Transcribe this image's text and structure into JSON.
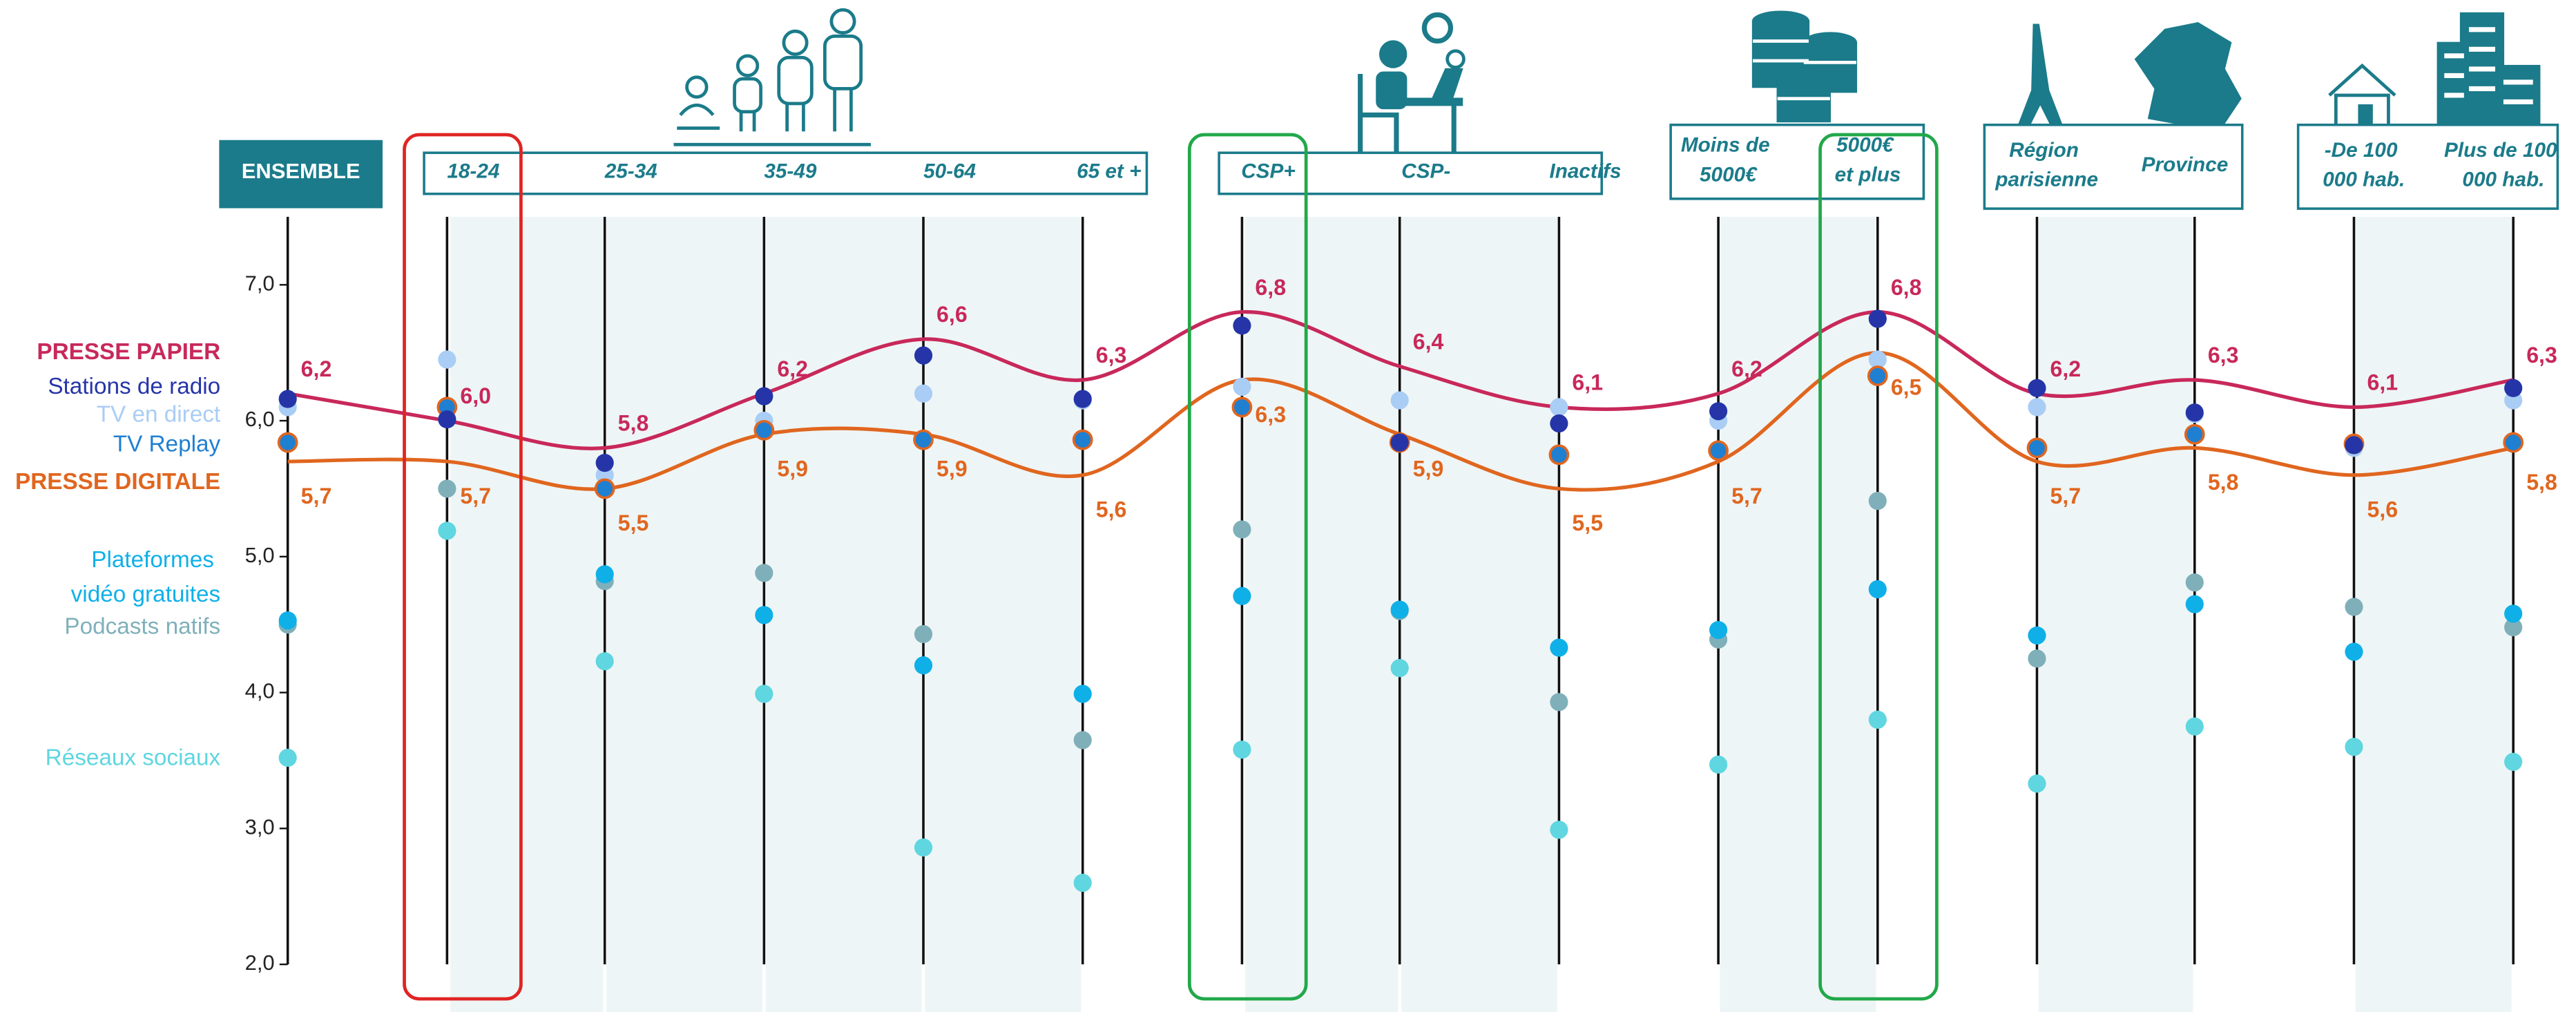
{
  "chart_data": {
    "type": "dot-profile",
    "groups": [
      {
        "categories": [
          "ENSEMBLE"
        ]
      },
      {
        "categories": [
          "18-24",
          "25-34",
          "35-49",
          "50-64",
          "65 et +"
        ]
      },
      {
        "categories": [
          "CSP+",
          "CSP-",
          "Inactifs"
        ]
      },
      {
        "categories": [
          "Moins de 5000€",
          "5000€ et plus"
        ]
      },
      {
        "categories": [
          "Région parisienne",
          "Province"
        ]
      },
      {
        "categories": [
          "-De 100 000 hab.",
          "Plus de 100 000 hab."
        ]
      }
    ],
    "ylim": [
      2,
      7.5
    ],
    "yticks": [
      {
        "value": 2,
        "label": "2,0"
      },
      {
        "value": 3,
        "label": "3,0"
      },
      {
        "value": 4,
        "label": "4,0"
      },
      {
        "value": 5,
        "label": "5,0"
      },
      {
        "value": 6,
        "label": "6,0"
      },
      {
        "value": 7,
        "label": "7,0"
      }
    ],
    "series": [
      {
        "name": "PRESSE PAPIER",
        "color": "#c8285a",
        "style": "curve",
        "values": [
          6.2,
          6.0,
          5.8,
          6.2,
          6.6,
          6.3,
          6.8,
          6.4,
          6.1,
          6.2,
          6.8,
          6.2,
          6.3,
          6.1,
          6.3
        ],
        "value_labels": [
          "6,2",
          "6,0",
          "5,8",
          "6,2",
          "6,6",
          "6,3",
          "6,8",
          "6,4",
          "6,1",
          "6,2",
          "6,8",
          "6,2",
          "6,3",
          "6,1",
          "6,3"
        ]
      },
      {
        "name": "Stations de radio",
        "color": "#2535a8",
        "style": "dot",
        "values": [
          6.16,
          6.01,
          5.69,
          6.18,
          6.48,
          6.16,
          6.7,
          5.84,
          5.98,
          6.07,
          6.75,
          6.24,
          6.06,
          5.82,
          6.24
        ]
      },
      {
        "name": "TV en direct",
        "color": "#a9cdf5",
        "style": "dot",
        "values": [
          6.1,
          6.45,
          5.6,
          6.0,
          6.2,
          6.15,
          6.25,
          6.15,
          6.1,
          6.0,
          6.45,
          6.1,
          6.05,
          5.8,
          6.15
        ]
      },
      {
        "name": "TV Replay",
        "color": "#1f7fd1",
        "style": "dot",
        "values": [
          5.84,
          6.1,
          5.5,
          5.93,
          5.86,
          5.86,
          6.1,
          5.84,
          5.75,
          5.78,
          6.33,
          5.8,
          5.9,
          5.83,
          5.84
        ]
      },
      {
        "name": "PRESSE DIGITALE",
        "color": "#e0661f",
        "style": "curve",
        "values": [
          5.7,
          5.7,
          5.5,
          5.9,
          5.9,
          5.6,
          6.3,
          5.9,
          5.5,
          5.7,
          6.5,
          5.7,
          5.8,
          5.6,
          5.8
        ],
        "value_labels": [
          "5,7",
          "5,7",
          "5,5",
          "5,9",
          "5,9",
          "5,6",
          "6,3",
          "5,9",
          "5,5",
          "5,7",
          "6,5",
          "5,7",
          "5,8",
          "5,6",
          "5,8"
        ]
      },
      {
        "name": "Plateformes vidéo gratuites",
        "color": "#0fb0e8",
        "style": "dot",
        "values": [
          4.53,
          6.1,
          4.87,
          4.57,
          4.2,
          3.99,
          4.71,
          4.61,
          4.33,
          4.46,
          4.76,
          4.42,
          4.65,
          4.3,
          4.58
        ]
      },
      {
        "name": "Podcasts natifs",
        "color": "#7fb0ba",
        "style": "dot",
        "values": [
          4.5,
          5.5,
          4.82,
          4.88,
          4.43,
          3.65,
          5.2,
          4.6,
          3.93,
          4.39,
          5.41,
          4.25,
          4.81,
          4.63,
          4.48
        ]
      },
      {
        "name": "Réseaux sociaux",
        "color": "#5fd6e0",
        "style": "dot",
        "values": [
          3.52,
          5.19,
          4.23,
          3.99,
          2.86,
          2.6,
          3.58,
          4.18,
          2.99,
          3.47,
          3.8,
          3.33,
          3.75,
          3.6,
          3.49
        ]
      }
    ]
  }
}
